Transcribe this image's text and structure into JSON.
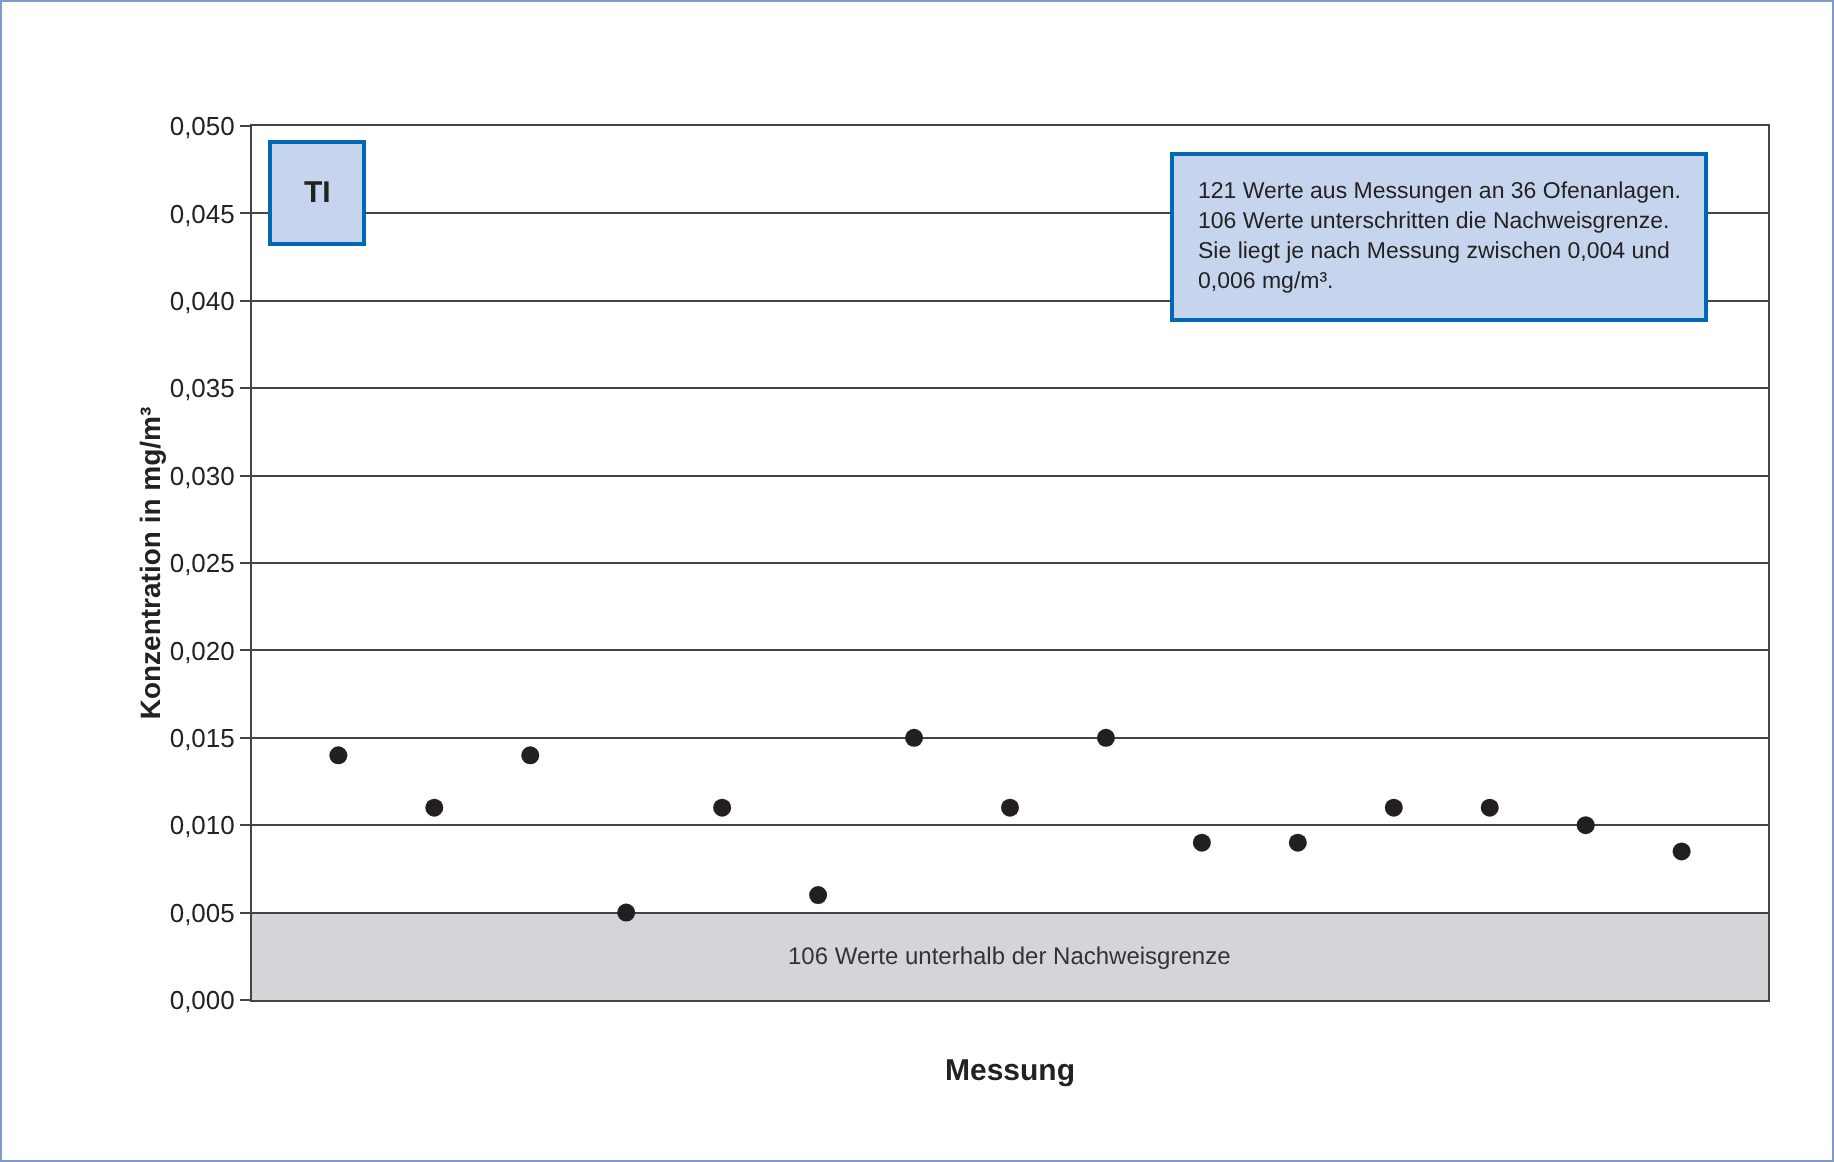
{
  "chart_data": {
    "type": "scatter",
    "xlabel": "Messung",
    "ylabel": "Konzentration in mg/m³",
    "categories": [
      null,
      null,
      null,
      null,
      null,
      null,
      null,
      null,
      null,
      null,
      null,
      null,
      null,
      null,
      null
    ],
    "series": [
      {
        "color": "#231f20",
        "values": [
          0.014,
          0.011,
          0.014,
          0.005,
          0.011,
          0.006,
          0.015,
          0.011,
          0.015,
          0.009,
          0.009,
          0.011,
          0.011,
          0.01,
          0.0085
        ]
      }
    ],
    "ylim": [
      0,
      0.05
    ],
    "yticks": [
      {
        "value": 0,
        "label": "0,000"
      },
      {
        "value": 0.005,
        "label": "0,005"
      },
      {
        "value": 0.01,
        "label": "0,010"
      },
      {
        "value": 0.015,
        "label": "0,015"
      },
      {
        "value": 0.02,
        "label": "0,020"
      },
      {
        "value": 0.025,
        "label": "0,025"
      },
      {
        "value": 0.03,
        "label": "0,030"
      },
      {
        "value": 0.035,
        "label": "0,035"
      },
      {
        "value": 0.04,
        "label": "0,040"
      },
      {
        "value": 0.045,
        "label": "0,045"
      },
      {
        "value": 0.05,
        "label": "0,050"
      }
    ],
    "bands": [
      {
        "axis": "y",
        "from": 0,
        "to": 0.005,
        "label": "106 Werte unterhalb der Nachweisgrenze",
        "color": "#d4d5d8"
      }
    ],
    "annotations": [
      "TI",
      "121 Werte aus Messungen an 36 Ofenanlagen.\n106 Werte unterschritten die Nachweisgrenze.\nSie liegt je nach Messung zwischen 0,004 und\n0,006 mg/m³."
    ],
    "grid": "y",
    "marker": "circle",
    "tick_labels": "y"
  }
}
